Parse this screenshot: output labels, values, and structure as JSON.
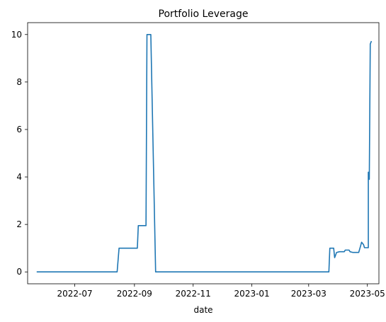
{
  "chart_data": {
    "type": "line",
    "title": "Portfolio Leverage",
    "xlabel": "date",
    "ylabel": "",
    "xlim": [
      "2022-05-13",
      "2023-05-13"
    ],
    "ylim": [
      -0.5,
      10.5
    ],
    "xticks": [
      "2022-07",
      "2022-09",
      "2022-11",
      "2023-01",
      "2023-03",
      "2023-05"
    ],
    "yticks": [
      0,
      2,
      4,
      6,
      8,
      10
    ],
    "grid": false,
    "legend": null,
    "series": [
      {
        "color": "#1f77b4",
        "x": [
          "2022-05-23",
          "2022-08-14",
          "2022-08-16",
          "2022-09-04",
          "2022-09-05",
          "2022-09-13",
          "2022-09-14",
          "2022-09-18",
          "2022-09-23",
          "2022-09-24",
          "2022-10-15",
          "2023-03-01",
          "2023-03-22",
          "2023-03-23",
          "2023-03-27",
          "2023-03-28",
          "2023-03-30",
          "2023-04-02",
          "2023-04-07",
          "2023-04-08",
          "2023-04-12",
          "2023-04-13",
          "2023-04-16",
          "2023-04-22",
          "2023-04-24",
          "2023-04-25",
          "2023-04-27",
          "2023-04-28",
          "2023-05-02",
          "2023-05-02",
          "2023-05-03",
          "2023-05-04",
          "2023-05-05"
        ],
        "y": [
          0.0,
          0.0,
          1.0,
          1.0,
          1.95,
          1.95,
          10.0,
          10.0,
          0.0,
          0.0,
          0.0,
          0.0,
          0.0,
          1.0,
          1.0,
          0.6,
          0.82,
          0.85,
          0.85,
          0.92,
          0.92,
          0.85,
          0.82,
          0.82,
          1.1,
          1.25,
          1.15,
          1.02,
          1.02,
          4.2,
          3.9,
          9.6,
          9.7
        ]
      }
    ]
  }
}
